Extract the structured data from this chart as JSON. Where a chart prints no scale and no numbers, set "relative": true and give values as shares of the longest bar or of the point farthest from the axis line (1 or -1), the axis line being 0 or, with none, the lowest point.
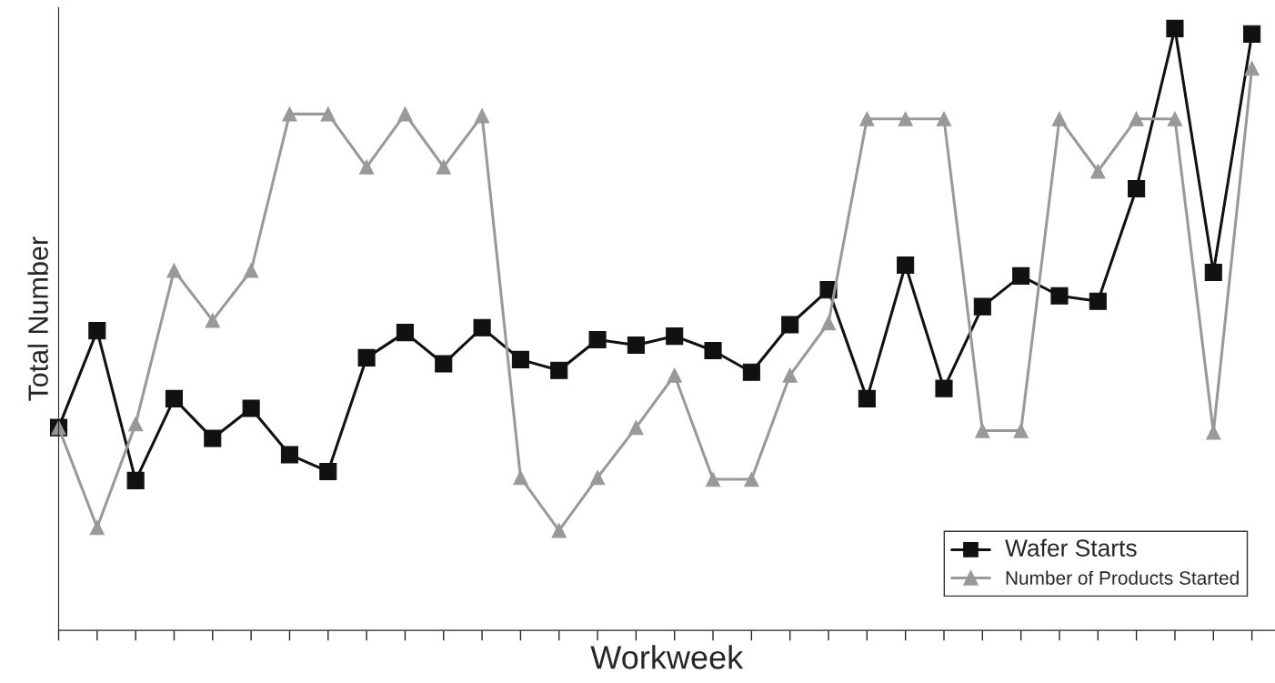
{
  "chart_data": {
    "type": "line",
    "xlabel": "Workweek",
    "ylabel": "Total Number",
    "relative": true,
    "categories": [
      null,
      null,
      null,
      null,
      null,
      null,
      null,
      null,
      null,
      null,
      null,
      null,
      null,
      null,
      null,
      null,
      null,
      null,
      null,
      null,
      null,
      null,
      null,
      null,
      null,
      null,
      null,
      null,
      null,
      null,
      null,
      null
    ],
    "series": [
      {
        "name": "Wafer Starts",
        "color": "#111111",
        "marker": "square",
        "values": [
          0.337,
          0.498,
          0.249,
          0.385,
          0.319,
          0.369,
          0.292,
          0.264,
          0.453,
          0.495,
          0.443,
          0.503,
          0.45,
          0.432,
          0.483,
          0.474,
          0.489,
          0.465,
          0.429,
          0.508,
          0.566,
          0.385,
          0.607,
          0.402,
          0.538,
          0.589,
          0.556,
          0.547,
          0.734,
          1,
          0.595,
          0.991
        ]
      },
      {
        "name": "Number of Products Started",
        "color": "#999999",
        "marker": "triangle",
        "values": [
          0.337,
          0.171,
          0.343,
          0.598,
          0.515,
          0.598,
          0.858,
          0.858,
          0.77,
          0.858,
          0.77,
          0.855,
          0.254,
          0.166,
          0.254,
          0.337,
          0.424,
          0.251,
          0.251,
          0.424,
          0.511,
          0.85,
          0.85,
          0.85,
          0.332,
          0.332,
          0.85,
          0.763,
          0.85,
          0.85,
          0.329,
          0.934
        ]
      }
    ],
    "legend": "bottom right",
    "grid": false
  }
}
